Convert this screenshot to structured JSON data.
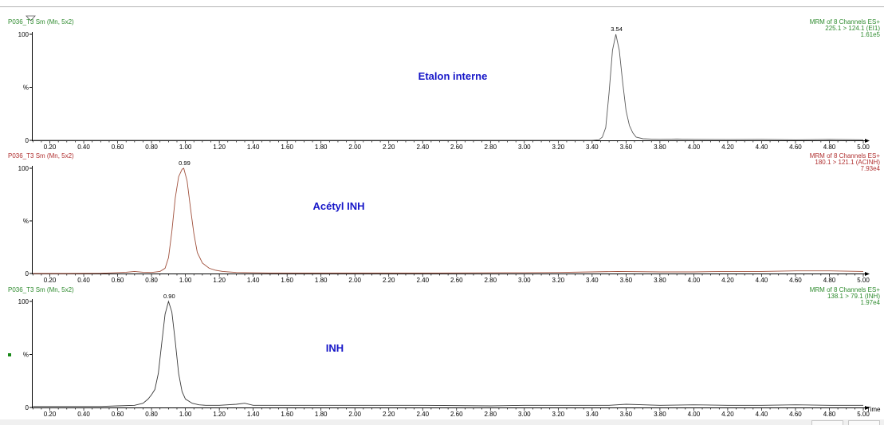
{
  "window": {
    "x_axis_label": "Time"
  },
  "chart_data": [
    {
      "type": "line",
      "id": "top",
      "header_left": "P036_T3 Sm (Mn, 5x2)",
      "header_right": [
        "MRM of 8 Channels ES+",
        "225.1 > 124.1 (EI1)",
        "1.61e5"
      ],
      "header_color": "#2e8b2e",
      "trace_color": "#5a5a5a",
      "annotation": "Etalon interne",
      "yticks": [
        {
          "value": 0,
          "label": "0"
        },
        {
          "value": 50,
          "label": "%"
        },
        {
          "value": 100,
          "label": "100"
        }
      ],
      "ylim": [
        0,
        100
      ],
      "xlim": [
        0.1,
        5.0
      ],
      "xtick_labels": [
        "0.20",
        "0.40",
        "0.60",
        "0.80",
        "1.00",
        "1.20",
        "1.40",
        "1.60",
        "1.80",
        "2.00",
        "2.20",
        "2.40",
        "2.60",
        "2.80",
        "3.00",
        "3.20",
        "3.40",
        "3.60",
        "3.80",
        "4.00",
        "4.20",
        "4.40",
        "4.60",
        "4.80",
        "5.00"
      ],
      "peaks": [
        {
          "x": 3.54,
          "label": "3.54",
          "height": 100
        }
      ],
      "series": [
        {
          "x": [
            0.1,
            0.5,
            1.0,
            2.0,
            3.0,
            3.4,
            3.44,
            3.46,
            3.48,
            3.5,
            3.52,
            3.54,
            3.56,
            3.58,
            3.6,
            3.62,
            3.64,
            3.66,
            3.7,
            3.75,
            3.8,
            3.9,
            4.0,
            4.2,
            4.4,
            4.6,
            4.8,
            5.0
          ],
          "y": [
            0,
            0,
            0,
            0,
            0,
            0,
            0.5,
            3,
            12,
            45,
            85,
            100,
            85,
            55,
            28,
            14,
            7,
            3,
            1.5,
            1.2,
            1,
            1.3,
            1,
            0.8,
            1,
            0.5,
            1,
            0.5
          ]
        }
      ]
    },
    {
      "type": "line",
      "id": "middle",
      "header_left": "P036_T3 Sm (Mn, 5x2)",
      "header_right": [
        "MRM of 8 Channels ES+",
        "180.1 > 121.1 (ACINH)",
        "7.93e4"
      ],
      "header_color": "#b03030",
      "trace_color": "#a0503c",
      "annotation": "Acétyl INH",
      "yticks": [
        {
          "value": 0,
          "label": "0"
        },
        {
          "value": 50,
          "label": "%"
        },
        {
          "value": 100,
          "label": "100"
        }
      ],
      "ylim": [
        0,
        100
      ],
      "xlim": [
        0.1,
        5.0
      ],
      "xtick_labels": [
        "0.20",
        "0.40",
        "0.60",
        "0.80",
        "1.00",
        "1.20",
        "1.40",
        "1.60",
        "1.80",
        "2.00",
        "2.20",
        "2.40",
        "2.60",
        "2.80",
        "3.00",
        "3.20",
        "3.40",
        "3.60",
        "3.80",
        "4.00",
        "4.20",
        "4.40",
        "4.60",
        "4.80",
        "5.00"
      ],
      "peaks": [
        {
          "x": 0.99,
          "label": "0.99",
          "height": 100
        }
      ],
      "series": [
        {
          "x": [
            0.1,
            0.3,
            0.5,
            0.65,
            0.7,
            0.75,
            0.8,
            0.85,
            0.88,
            0.9,
            0.92,
            0.94,
            0.96,
            0.98,
            0.99,
            1.01,
            1.03,
            1.05,
            1.07,
            1.1,
            1.14,
            1.18,
            1.22,
            1.3,
            1.5,
            2.0,
            2.5,
            3.0,
            3.2,
            3.4,
            3.55,
            3.8,
            4.0,
            4.2,
            4.4,
            4.6,
            4.8,
            5.0
          ],
          "y": [
            0,
            0,
            0.2,
            1.2,
            2,
            1.2,
            1,
            2,
            5,
            15,
            40,
            72,
            92,
            99,
            100,
            88,
            62,
            38,
            20,
            10,
            5,
            3,
            2,
            1,
            0.5,
            0.5,
            0.5,
            0.8,
            1,
            1.5,
            2,
            1.5,
            1.5,
            2,
            2,
            2.5,
            2.5,
            2
          ]
        }
      ]
    },
    {
      "type": "line",
      "id": "bottom",
      "header_left": "P036_T3 Sm (Mn, 5x2)",
      "header_right": [
        "MRM of 8 Channels ES+",
        "138.1 > 79.1 (INH)",
        "1.97e4"
      ],
      "header_color": "#2e8b2e",
      "trace_color": "#3a3a3a",
      "annotation": "INH",
      "yticks": [
        {
          "value": 0,
          "label": "0"
        },
        {
          "value": 50,
          "label": "%"
        },
        {
          "value": 100,
          "label": "100"
        }
      ],
      "ylim": [
        0,
        100
      ],
      "xlim": [
        0.1,
        5.0
      ],
      "xtick_labels": [
        "0.20",
        "0.40",
        "0.60",
        "0.80",
        "1.00",
        "1.20",
        "1.40",
        "1.60",
        "1.80",
        "2.00",
        "2.20",
        "2.40",
        "2.60",
        "2.80",
        "3.00",
        "3.20",
        "3.40",
        "3.60",
        "3.80",
        "4.00",
        "4.20",
        "4.40",
        "4.60",
        "4.80",
        "5.00"
      ],
      "peaks": [
        {
          "x": 0.9,
          "label": "0.90",
          "height": 100
        }
      ],
      "series": [
        {
          "x": [
            0.1,
            0.3,
            0.5,
            0.6,
            0.7,
            0.75,
            0.78,
            0.8,
            0.82,
            0.84,
            0.86,
            0.88,
            0.9,
            0.92,
            0.94,
            0.96,
            0.98,
            1.0,
            1.04,
            1.08,
            1.12,
            1.2,
            1.3,
            1.35,
            1.4,
            1.6,
            1.8,
            2.0,
            2.4,
            2.8,
            3.0,
            3.2,
            3.5,
            3.6,
            3.8,
            4.0,
            4.2,
            4.4,
            4.6,
            4.8,
            5.0
          ],
          "y": [
            1,
            1,
            1,
            1.5,
            2,
            4,
            8,
            12,
            17,
            32,
            60,
            88,
            100,
            90,
            62,
            32,
            15,
            8,
            4,
            2.5,
            2,
            2,
            3,
            4,
            2,
            2,
            2,
            2,
            2,
            1.5,
            2,
            2,
            2,
            3,
            2,
            2.5,
            2,
            2,
            2.5,
            2,
            2
          ]
        }
      ]
    }
  ]
}
